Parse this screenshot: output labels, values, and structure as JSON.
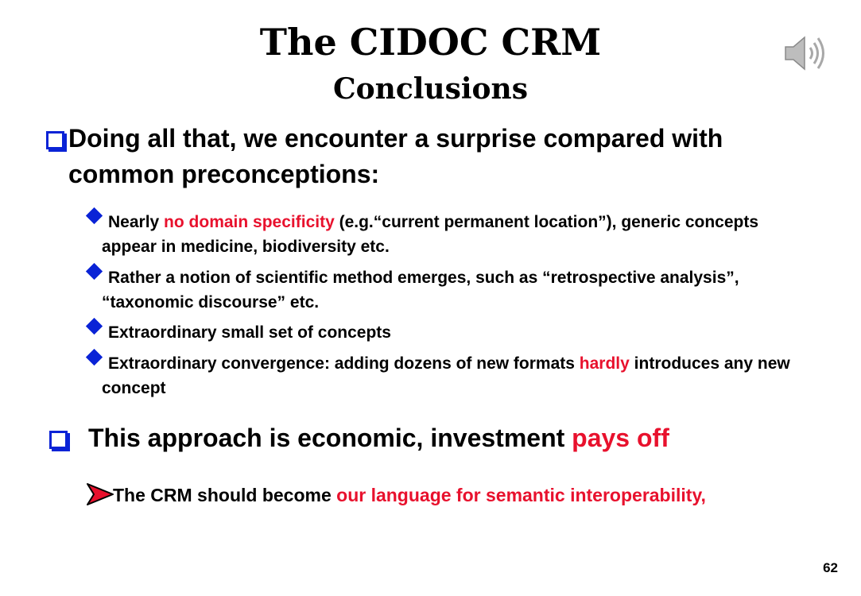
{
  "title": "The CIDOC CRM",
  "subtitle": "Conclusions",
  "bullets": {
    "b1": "Doing all that, we encounter a surprise compared with common preconceptions:",
    "b1_sub1_a": "Nearly ",
    "b1_sub1_red": "no domain specificity",
    "b1_sub1_b": " (e.g.“current permanent location”), generic concepts appear in medicine, biodiversity etc.",
    "b1_sub2": "Rather a notion of scientific method emerges, such as “retrospective analysis”, “taxonomic discourse” etc.",
    "b1_sub3": "Extraordinary small set of concepts",
    "b1_sub4_a": "Extraordinary convergence: adding dozens of new formats ",
    "b1_sub4_red": "hardly",
    "b1_sub4_b": " introduces any new concept",
    "b2_a": "This approach is economic, investment ",
    "b2_red": "pays off",
    "b2_sub1_a": "The CRM  should become ",
    "b2_sub1_red": "our language for semantic interoperability,"
  },
  "icons": {
    "audio": "speaker-icon",
    "box_bullet": "square-bullet-icon",
    "diamond_bullet": "diamond-bullet-icon",
    "arrow_bullet": "arrow-bullet-icon"
  },
  "colors": {
    "accent_blue": "#0a23d6",
    "accent_red": "#e8112d"
  },
  "page_number": "62"
}
